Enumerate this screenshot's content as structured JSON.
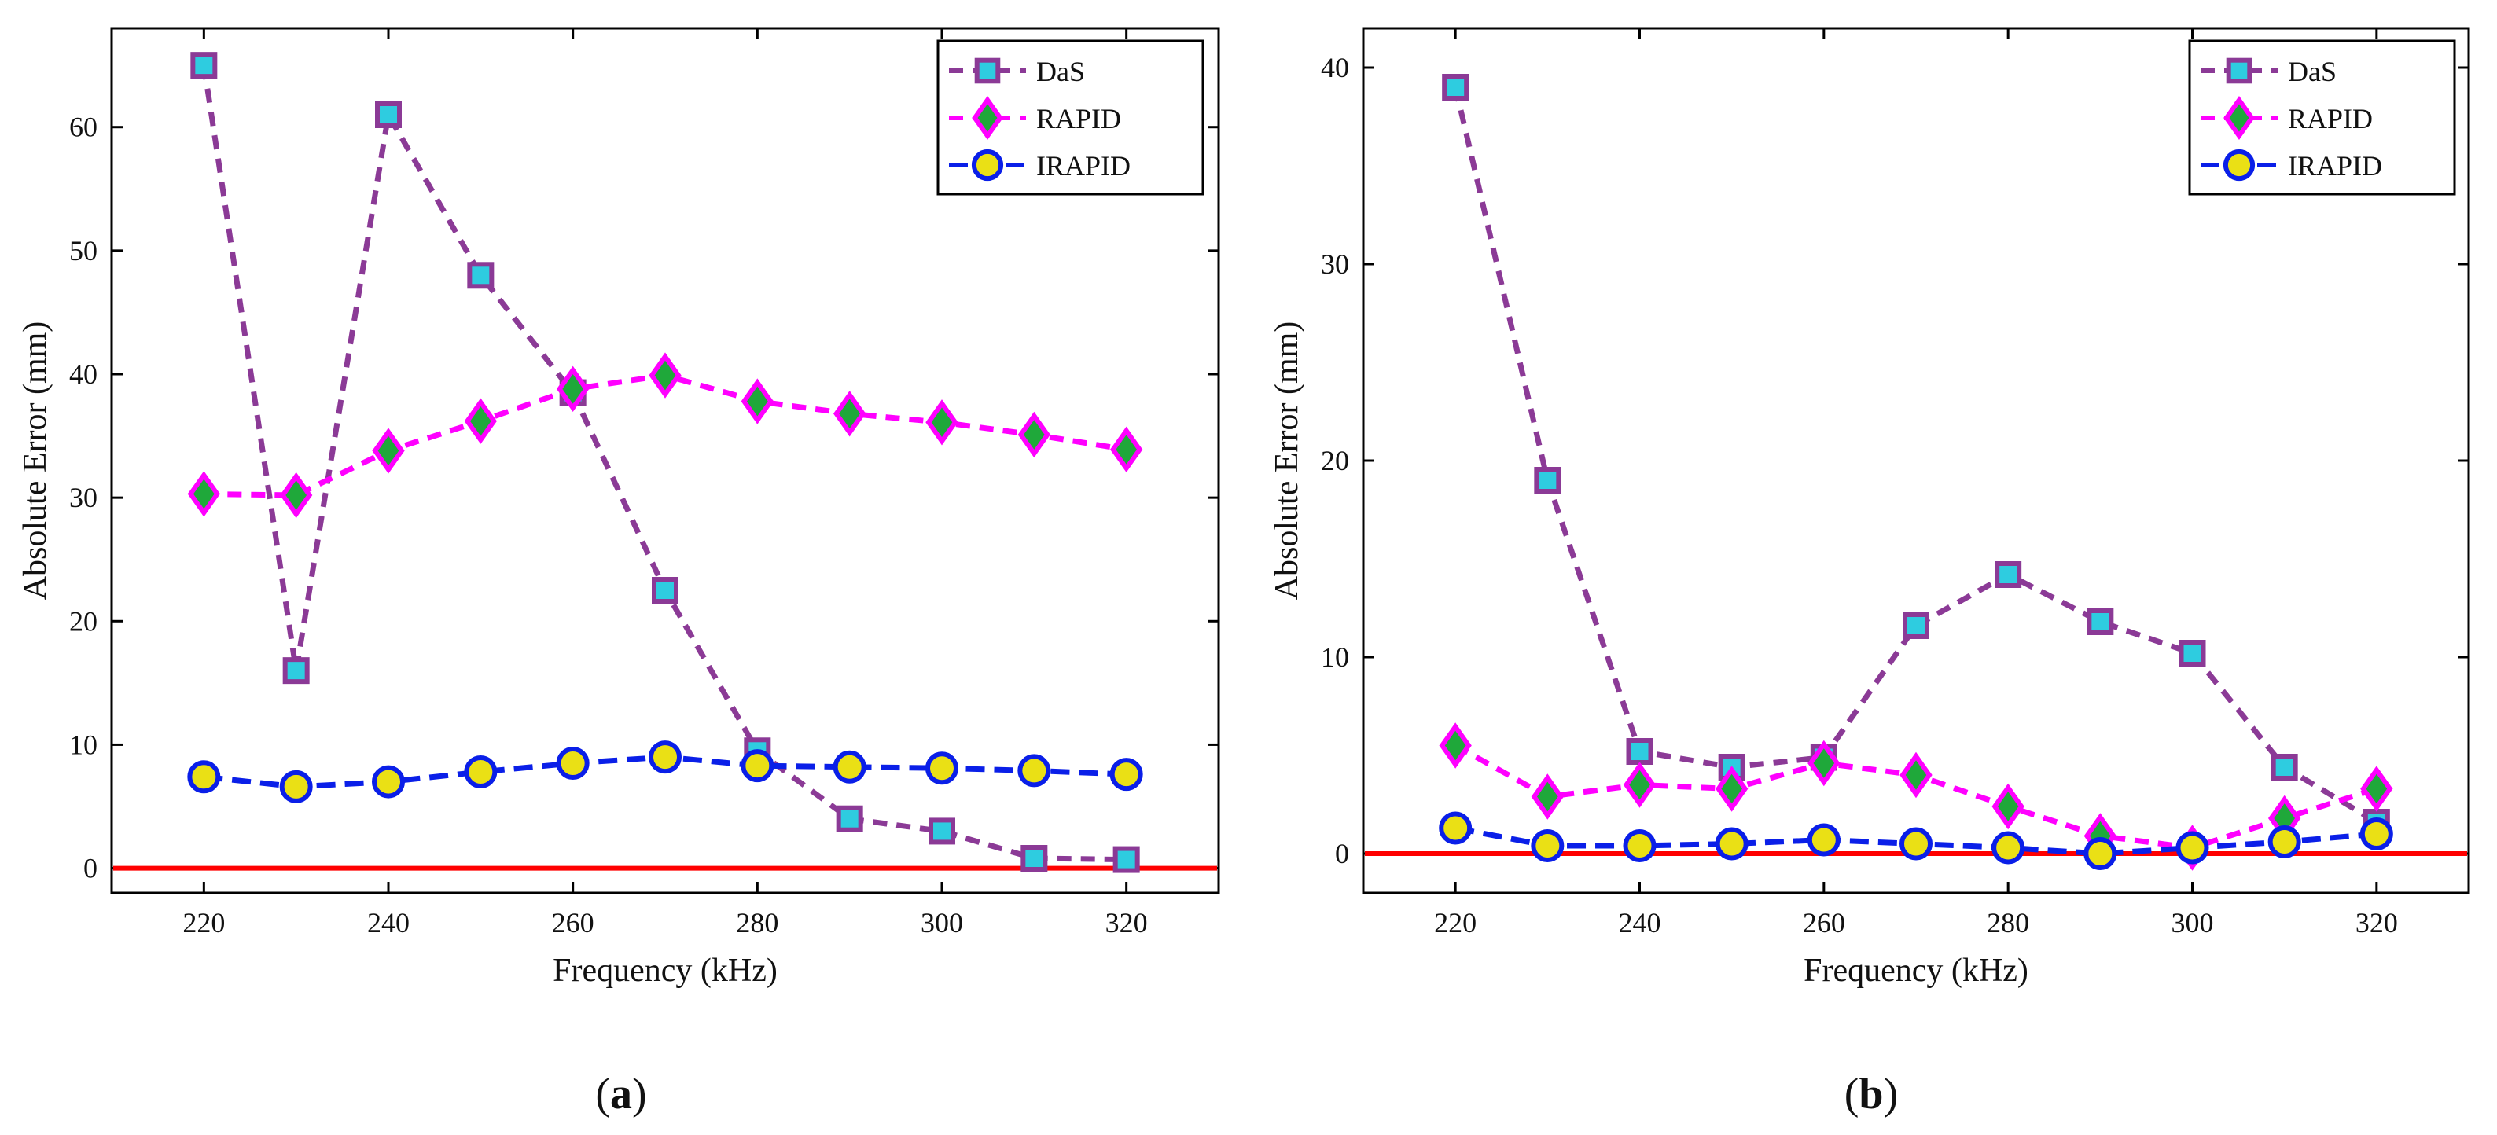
{
  "colors": {
    "das_line": "#8B3A96",
    "das_fill": "#2ECCE0",
    "rapid_line": "#FF00FF",
    "rapid_fill": "#1FA83A",
    "irapid_line": "#0A1FE8",
    "irapid_fill": "#EAE015",
    "zero_line": "#FF0000",
    "axis": "#000000"
  },
  "chart_data": [
    {
      "type": "line",
      "panel_label": {
        "open": "(",
        "letter": "a",
        "close": ")"
      },
      "xlabel": "Frequency (kHz)",
      "ylabel": "Absolute Error (mm)",
      "xlim": [
        210,
        330
      ],
      "ylim": [
        -2,
        68
      ],
      "xticks": [
        220,
        240,
        260,
        280,
        300,
        320
      ],
      "yticks": [
        0,
        10,
        20,
        30,
        40,
        50,
        60
      ],
      "x": [
        220,
        230,
        240,
        250,
        260,
        270,
        280,
        290,
        300,
        310,
        320
      ],
      "series": [
        {
          "name": "DaS",
          "marker": "square",
          "values": [
            65,
            16,
            61,
            48,
            38.5,
            22.5,
            9.5,
            4,
            3,
            0.8,
            0.7
          ]
        },
        {
          "name": "RAPID",
          "marker": "diamond",
          "values": [
            30.3,
            30.2,
            33.8,
            36.2,
            38.8,
            39.9,
            37.8,
            36.8,
            36.1,
            35.1,
            33.9
          ]
        },
        {
          "name": "IRAPID",
          "marker": "circle",
          "values": [
            7.4,
            6.6,
            7.0,
            7.8,
            8.5,
            9.0,
            8.3,
            8.2,
            8.1,
            7.9,
            7.6
          ]
        }
      ],
      "reference_line": {
        "y": 0
      },
      "legend": {
        "position": "top-right"
      }
    },
    {
      "type": "line",
      "panel_label": {
        "open": "(",
        "letter": "b",
        "close": ")"
      },
      "xlabel": "Frequency (kHz)",
      "ylabel": "Absolute Error (mm)",
      "xlim": [
        210,
        330
      ],
      "ylim": [
        -2,
        42
      ],
      "xticks": [
        220,
        240,
        260,
        280,
        300,
        320
      ],
      "yticks": [
        0,
        10,
        20,
        30,
        40
      ],
      "x": [
        220,
        230,
        240,
        250,
        260,
        270,
        280,
        290,
        300,
        310,
        320
      ],
      "series": [
        {
          "name": "DaS",
          "marker": "square",
          "values": [
            39,
            19,
            5.2,
            4.4,
            4.9,
            11.6,
            14.2,
            11.8,
            10.2,
            4.4,
            1.6
          ]
        },
        {
          "name": "RAPID",
          "marker": "diamond",
          "values": [
            5.5,
            2.9,
            3.5,
            3.3,
            4.6,
            4.0,
            2.4,
            0.9,
            0.3,
            1.8,
            3.3
          ]
        },
        {
          "name": "IRAPID",
          "marker": "circle",
          "values": [
            1.3,
            0.4,
            0.4,
            0.5,
            0.7,
            0.5,
            0.3,
            0.0,
            0.3,
            0.6,
            1.0
          ]
        }
      ],
      "reference_line": {
        "y": 0
      },
      "legend": {
        "position": "top-right"
      }
    }
  ]
}
